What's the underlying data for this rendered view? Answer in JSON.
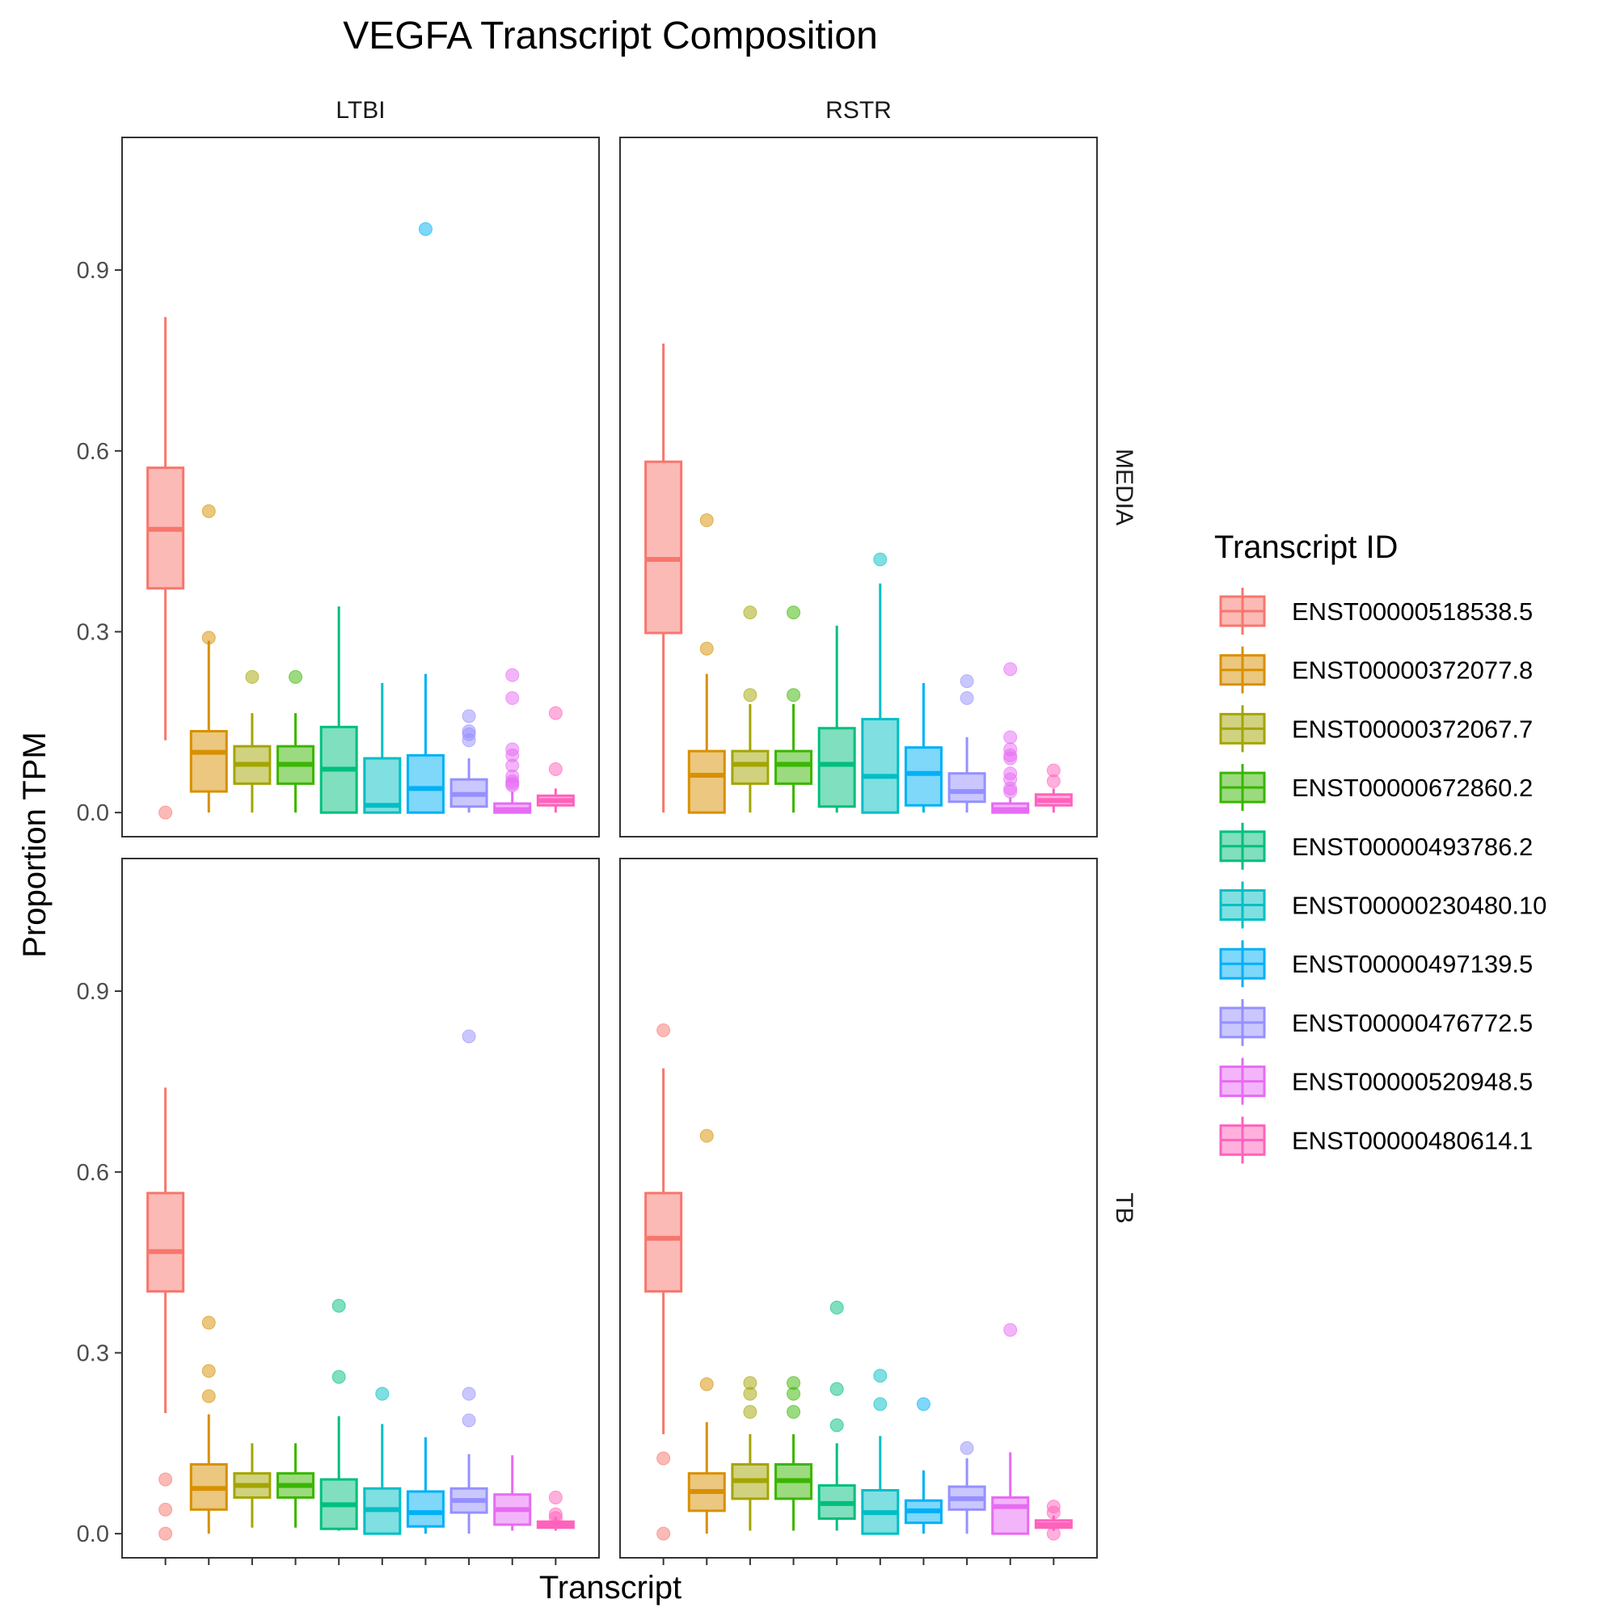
{
  "chart_data": {
    "type": "boxplot",
    "title": "VEGFA Transcript Composition",
    "xlabel": "Transcript",
    "ylabel": "Proportion TPM",
    "ylim": [
      -0.04,
      1.12
    ],
    "y_ticks": [
      "0.0",
      "0.3",
      "0.6",
      "0.9"
    ],
    "y_tick_values": [
      0,
      0.3,
      0.6,
      0.9
    ],
    "facet_cols": [
      "LTBI",
      "RSTR"
    ],
    "facet_rows": [
      "MEDIA",
      "TB"
    ],
    "legend": {
      "title": "Transcript ID",
      "placement": "right",
      "items": [
        {
          "label": "ENST00000518538.5",
          "color": "#F8766D"
        },
        {
          "label": "ENST00000372077.8",
          "color": "#D89000"
        },
        {
          "label": "ENST00000372067.7",
          "color": "#A3A500"
        },
        {
          "label": "ENST00000672860.2",
          "color": "#39B600"
        },
        {
          "label": "ENST00000493786.2",
          "color": "#00BF7D"
        },
        {
          "label": "ENST00000230480.10",
          "color": "#00BFC4"
        },
        {
          "label": "ENST00000497139.5",
          "color": "#00B0F6"
        },
        {
          "label": "ENST00000476772.5",
          "color": "#9590FF"
        },
        {
          "label": "ENST00000520948.5",
          "color": "#E76BF3"
        },
        {
          "label": "ENST00000480614.1",
          "color": "#FF62BC"
        }
      ]
    },
    "panels": [
      {
        "col": "LTBI",
        "row": "MEDIA",
        "boxes": [
          {
            "wlo": 0.12,
            "q1": 0.372,
            "med": 0.47,
            "q3": 0.572,
            "whi": 0.822,
            "out": [
              0.0
            ]
          },
          {
            "wlo": 0.0,
            "q1": 0.035,
            "med": 0.1,
            "q3": 0.135,
            "whi": 0.285,
            "out": [
              0.5,
              0.29
            ]
          },
          {
            "wlo": 0.0,
            "q1": 0.048,
            "med": 0.08,
            "q3": 0.11,
            "whi": 0.165,
            "out": [
              0.225
            ]
          },
          {
            "wlo": 0.0,
            "q1": 0.048,
            "med": 0.08,
            "q3": 0.11,
            "whi": 0.165,
            "out": [
              0.225
            ]
          },
          {
            "wlo": 0.0,
            "q1": 0.0,
            "med": 0.072,
            "q3": 0.142,
            "whi": 0.342,
            "out": []
          },
          {
            "wlo": 0.0,
            "q1": 0.0,
            "med": 0.012,
            "q3": 0.09,
            "whi": 0.215,
            "out": []
          },
          {
            "wlo": 0.0,
            "q1": 0.0,
            "med": 0.04,
            "q3": 0.095,
            "whi": 0.23,
            "out": [
              0.968
            ]
          },
          {
            "wlo": 0.0,
            "q1": 0.01,
            "med": 0.03,
            "q3": 0.055,
            "whi": 0.09,
            "out": [
              0.16,
              0.135,
              0.13,
              0.12
            ]
          },
          {
            "wlo": 0.0,
            "q1": 0.0,
            "med": 0.005,
            "q3": 0.015,
            "whi": 0.035,
            "out": [
              0.228,
              0.19,
              0.105,
              0.095,
              0.078,
              0.06,
              0.052,
              0.048,
              0.045
            ]
          },
          {
            "wlo": 0.0,
            "q1": 0.012,
            "med": 0.02,
            "q3": 0.028,
            "whi": 0.04,
            "out": [
              0.165,
              0.072
            ]
          }
        ]
      },
      {
        "col": "RSTR",
        "row": "MEDIA",
        "boxes": [
          {
            "wlo": 0.0,
            "q1": 0.298,
            "med": 0.42,
            "q3": 0.582,
            "whi": 0.778,
            "out": []
          },
          {
            "wlo": 0.0,
            "q1": 0.0,
            "med": 0.062,
            "q3": 0.102,
            "whi": 0.23,
            "out": [
              0.485,
              0.272
            ]
          },
          {
            "wlo": 0.0,
            "q1": 0.048,
            "med": 0.08,
            "q3": 0.102,
            "whi": 0.18,
            "out": [
              0.332,
              0.195
            ]
          },
          {
            "wlo": 0.0,
            "q1": 0.048,
            "med": 0.08,
            "q3": 0.102,
            "whi": 0.18,
            "out": [
              0.332,
              0.195
            ]
          },
          {
            "wlo": 0.0,
            "q1": 0.01,
            "med": 0.08,
            "q3": 0.14,
            "whi": 0.31,
            "out": []
          },
          {
            "wlo": 0.0,
            "q1": 0.0,
            "med": 0.06,
            "q3": 0.155,
            "whi": 0.38,
            "out": [
              0.42
            ]
          },
          {
            "wlo": 0.0,
            "q1": 0.012,
            "med": 0.065,
            "q3": 0.108,
            "whi": 0.215,
            "out": []
          },
          {
            "wlo": 0.0,
            "q1": 0.018,
            "med": 0.035,
            "q3": 0.065,
            "whi": 0.125,
            "out": [
              0.218,
              0.19
            ]
          },
          {
            "wlo": 0.0,
            "q1": 0.0,
            "med": 0.005,
            "q3": 0.015,
            "whi": 0.025,
            "out": [
              0.238,
              0.125,
              0.105,
              0.095,
              0.09,
              0.065,
              0.055,
              0.04,
              0.035
            ]
          },
          {
            "wlo": 0.0,
            "q1": 0.012,
            "med": 0.02,
            "q3": 0.03,
            "whi": 0.04,
            "out": [
              0.07,
              0.052
            ]
          }
        ]
      },
      {
        "col": "LTBI",
        "row": "TB",
        "boxes": [
          {
            "wlo": 0.2,
            "q1": 0.402,
            "med": 0.468,
            "q3": 0.565,
            "whi": 0.74,
            "out": [
              0.09,
              0.04,
              0.0
            ]
          },
          {
            "wlo": 0.0,
            "q1": 0.04,
            "med": 0.075,
            "q3": 0.115,
            "whi": 0.198,
            "out": [
              0.35,
              0.27,
              0.228
            ]
          },
          {
            "wlo": 0.01,
            "q1": 0.06,
            "med": 0.08,
            "q3": 0.1,
            "whi": 0.15,
            "out": []
          },
          {
            "wlo": 0.01,
            "q1": 0.06,
            "med": 0.08,
            "q3": 0.1,
            "whi": 0.15,
            "out": []
          },
          {
            "wlo": 0.005,
            "q1": 0.008,
            "med": 0.048,
            "q3": 0.09,
            "whi": 0.195,
            "out": [
              0.378,
              0.26
            ]
          },
          {
            "wlo": 0.0,
            "q1": 0.0,
            "med": 0.04,
            "q3": 0.075,
            "whi": 0.182,
            "out": [
              0.232
            ]
          },
          {
            "wlo": 0.0,
            "q1": 0.012,
            "med": 0.035,
            "q3": 0.07,
            "whi": 0.16,
            "out": []
          },
          {
            "wlo": 0.0,
            "q1": 0.035,
            "med": 0.055,
            "q3": 0.075,
            "whi": 0.132,
            "out": [
              0.825,
              0.232,
              0.188
            ]
          },
          {
            "wlo": 0.005,
            "q1": 0.015,
            "med": 0.04,
            "q3": 0.065,
            "whi": 0.13,
            "out": []
          },
          {
            "wlo": 0.005,
            "q1": 0.01,
            "med": 0.015,
            "q3": 0.02,
            "whi": 0.028,
            "out": [
              0.06,
              0.032,
              0.026
            ]
          }
        ]
      },
      {
        "col": "RSTR",
        "row": "TB",
        "boxes": [
          {
            "wlo": 0.165,
            "q1": 0.402,
            "med": 0.49,
            "q3": 0.565,
            "whi": 0.772,
            "out": [
              0.835,
              0.125,
              0.0
            ]
          },
          {
            "wlo": 0.0,
            "q1": 0.038,
            "med": 0.07,
            "q3": 0.1,
            "whi": 0.185,
            "out": [
              0.66,
              0.248
            ]
          },
          {
            "wlo": 0.005,
            "q1": 0.058,
            "med": 0.088,
            "q3": 0.115,
            "whi": 0.165,
            "out": [
              0.25,
              0.232,
              0.202
            ]
          },
          {
            "wlo": 0.005,
            "q1": 0.058,
            "med": 0.088,
            "q3": 0.115,
            "whi": 0.165,
            "out": [
              0.25,
              0.232,
              0.202
            ]
          },
          {
            "wlo": 0.005,
            "q1": 0.025,
            "med": 0.05,
            "q3": 0.08,
            "whi": 0.15,
            "out": [
              0.375,
              0.24,
              0.18
            ]
          },
          {
            "wlo": 0.0,
            "q1": 0.0,
            "med": 0.035,
            "q3": 0.072,
            "whi": 0.162,
            "out": [
              0.262,
              0.215
            ]
          },
          {
            "wlo": 0.0,
            "q1": 0.018,
            "med": 0.038,
            "q3": 0.055,
            "whi": 0.105,
            "out": [
              0.215
            ]
          },
          {
            "wlo": 0.0,
            "q1": 0.04,
            "med": 0.058,
            "q3": 0.078,
            "whi": 0.125,
            "out": [
              0.142
            ]
          },
          {
            "wlo": 0.0,
            "q1": 0.0,
            "med": 0.045,
            "q3": 0.06,
            "whi": 0.135,
            "out": [
              0.338
            ]
          },
          {
            "wlo": 0.005,
            "q1": 0.01,
            "med": 0.015,
            "q3": 0.022,
            "whi": 0.03,
            "out": [
              0.045,
              0.035,
              0.0
            ]
          }
        ]
      }
    ]
  }
}
